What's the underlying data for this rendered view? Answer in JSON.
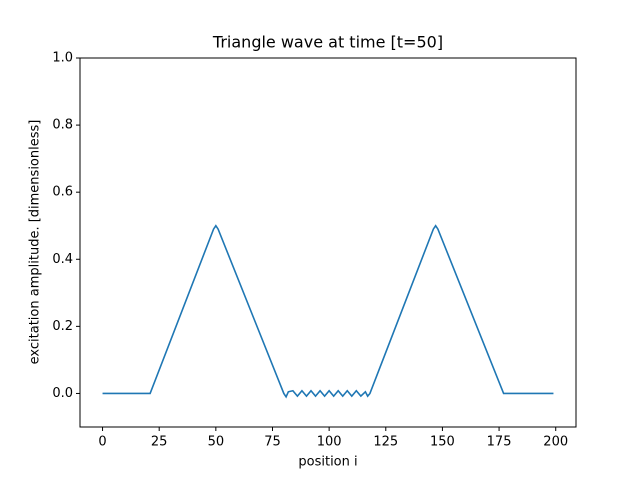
{
  "chart_data": {
    "type": "line",
    "title": "Triangle wave at time [t=50]",
    "x_label": "position i",
    "y_label": "excitation amplitude. [dimensionless]",
    "x": [
      0,
      20,
      21,
      49,
      50,
      51,
      80,
      81,
      82,
      84,
      86,
      88,
      90,
      92,
      94,
      96,
      98,
      100,
      102,
      104,
      106,
      108,
      110,
      112,
      114,
      116,
      117,
      118,
      146,
      147,
      148,
      177,
      178,
      199
    ],
    "series": [
      {
        "name": "excitation",
        "color": "#1f77b4",
        "values": [
          0,
          0,
          0,
          0.49,
          0.5,
          0.49,
          0,
          -0.01,
          0.005,
          0.008,
          -0.008,
          0.008,
          -0.008,
          0.008,
          -0.008,
          0.008,
          -0.008,
          0.008,
          -0.008,
          0.008,
          -0.008,
          0.008,
          -0.008,
          0.008,
          -0.008,
          0.005,
          -0.008,
          0,
          0.49,
          0.5,
          0.49,
          0,
          0,
          0
        ]
      }
    ],
    "xlim": [
      -9.95,
      208.95
    ],
    "ylim": [
      -0.1,
      1.0
    ],
    "xticks": [
      0,
      25,
      50,
      75,
      100,
      125,
      150,
      175,
      200
    ],
    "yticks": [
      {
        "value": 0,
        "label": "0.0"
      },
      {
        "value": 0.2,
        "label": "0.2"
      },
      {
        "value": 0.4,
        "label": "0.4"
      },
      {
        "value": 0.6,
        "label": "0.6"
      },
      {
        "value": 0.8,
        "label": "0.8"
      },
      {
        "value": 1,
        "label": "1.0"
      }
    ]
  }
}
